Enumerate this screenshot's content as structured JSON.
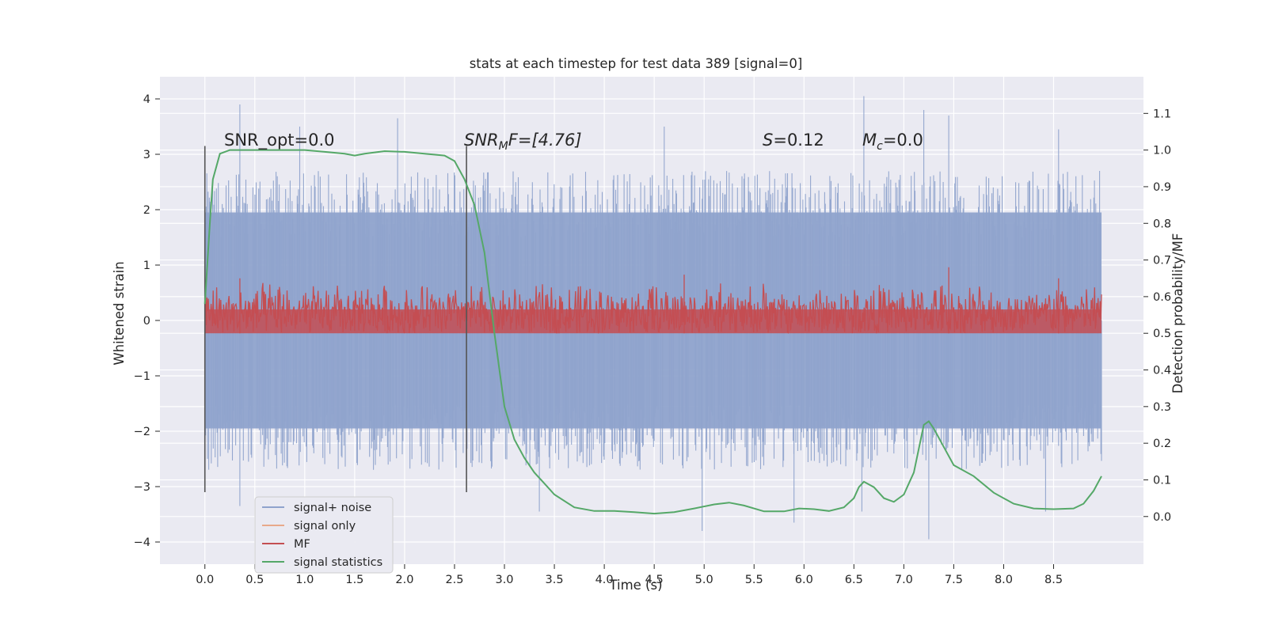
{
  "chart_data": {
    "type": "line",
    "title": "stats at each timestep for test data 389 [signal=0]",
    "xlabel": "Time (s)",
    "ylabel_left": "Whitened strain",
    "ylabel_right": "Detection probability/MF",
    "xlim": [
      -0.45,
      9.4
    ],
    "ylim_left": [
      -4.4,
      4.4
    ],
    "ylim_right": [
      -0.13,
      1.2
    ],
    "xticks": [
      "0.0",
      "0.5",
      "1.0",
      "1.5",
      "2.0",
      "2.5",
      "3.0",
      "3.5",
      "4.0",
      "4.5",
      "5.0",
      "5.5",
      "6.0",
      "6.5",
      "7.0",
      "7.5",
      "8.0",
      "8.5"
    ],
    "yticks_left": [
      "4",
      "3",
      "2",
      "1",
      "0",
      "−1",
      "−2",
      "−3",
      "−4"
    ],
    "yticks_right": [
      "1.1",
      "1.0",
      "0.9",
      "0.8",
      "0.7",
      "0.6",
      "0.5",
      "0.4",
      "0.3",
      "0.2",
      "0.1",
      "0.0"
    ],
    "grid": true,
    "legend_position": "lower-left",
    "annotations": {
      "snr_opt": "SNR_opt=0.0",
      "snr_mf": "SNR",
      "snr_mf_sub": "M",
      "snr_mf_rest": "F=[4.76]",
      "s_stat": "S",
      "s_stat_rest": "=0.12",
      "mc": "M",
      "mc_sub": "c",
      "mc_rest": "=0.0"
    },
    "vertical_markers_x": [
      0.0,
      2.62
    ],
    "series": [
      {
        "name": "signal+ noise",
        "color": "#8fa3cc",
        "axis": "left",
        "description_values": "noise band, typical range about -2 to +2",
        "x_range": [
          0.0,
          8.98
        ],
        "typical_band": [
          -1.95,
          1.95
        ],
        "spikes": [
          [
            0.35,
            3.9
          ],
          [
            0.95,
            3.5
          ],
          [
            1.93,
            3.65
          ],
          [
            4.6,
            3.5
          ],
          [
            6.6,
            4.05
          ],
          [
            7.2,
            3.8
          ],
          [
            7.45,
            3.7
          ],
          [
            8.55,
            3.45
          ],
          [
            7.25,
            -3.95
          ],
          [
            3.35,
            -3.45
          ],
          [
            4.98,
            -3.8
          ],
          [
            5.9,
            -3.65
          ],
          [
            6.58,
            -3.45
          ],
          [
            8.42,
            -3.45
          ],
          [
            0.35,
            -3.35
          ]
        ]
      },
      {
        "name": "signal only",
        "color": "#e8a98a",
        "axis": "left",
        "values_note": "flat at 0 (signal=0)"
      },
      {
        "name": "MF",
        "color": "#c44e52",
        "axis": "right",
        "typical_band": [
          0.5,
          0.62
        ],
        "peaks": [
          [
            0.35,
            0.65
          ],
          [
            4.8,
            0.66
          ],
          [
            7.45,
            0.68
          ],
          [
            8.55,
            0.65
          ]
        ]
      },
      {
        "name": "signal statistics",
        "color": "#55a868",
        "axis": "right",
        "x": [
          0.0,
          0.05,
          0.08,
          0.15,
          0.25,
          0.4,
          0.6,
          0.8,
          1.0,
          1.2,
          1.4,
          1.5,
          1.6,
          1.8,
          2.0,
          2.2,
          2.4,
          2.5,
          2.6,
          2.7,
          2.8,
          2.9,
          3.0,
          3.1,
          3.2,
          3.3,
          3.4,
          3.5,
          3.7,
          3.9,
          4.1,
          4.3,
          4.5,
          4.7,
          4.9,
          5.1,
          5.25,
          5.4,
          5.6,
          5.8,
          5.95,
          6.1,
          6.25,
          6.4,
          6.5,
          6.55,
          6.6,
          6.7,
          6.8,
          6.9,
          7.0,
          7.1,
          7.2,
          7.25,
          7.3,
          7.4,
          7.5,
          7.7,
          7.9,
          8.1,
          8.3,
          8.5,
          8.7,
          8.8,
          8.9,
          8.98
        ],
        "values": [
          0.58,
          0.8,
          0.92,
          0.99,
          1.0,
          1.0,
          1.0,
          1.0,
          1.0,
          0.995,
          0.99,
          0.985,
          0.99,
          0.997,
          0.995,
          0.99,
          0.985,
          0.97,
          0.92,
          0.85,
          0.72,
          0.5,
          0.3,
          0.21,
          0.16,
          0.12,
          0.09,
          0.06,
          0.025,
          0.015,
          0.015,
          0.012,
          0.008,
          0.012,
          0.022,
          0.033,
          0.038,
          0.03,
          0.014,
          0.014,
          0.022,
          0.02,
          0.015,
          0.025,
          0.05,
          0.08,
          0.095,
          0.08,
          0.05,
          0.04,
          0.06,
          0.12,
          0.25,
          0.26,
          0.24,
          0.19,
          0.14,
          0.11,
          0.065,
          0.035,
          0.022,
          0.02,
          0.022,
          0.035,
          0.07,
          0.11
        ]
      }
    ]
  }
}
